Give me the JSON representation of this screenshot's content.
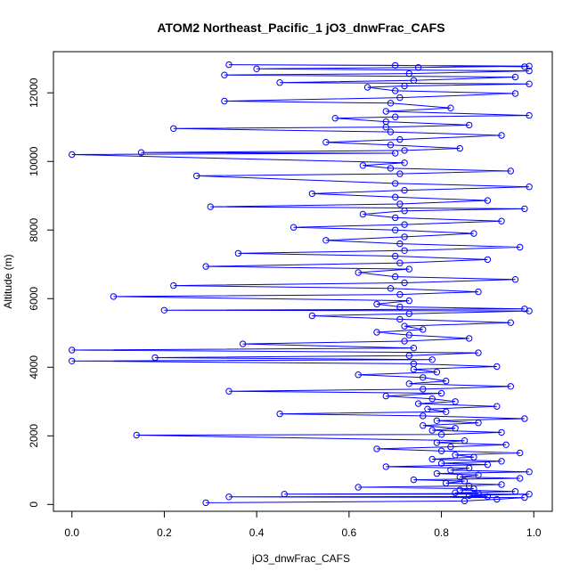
{
  "chart_data": {
    "type": "scatter",
    "title": "ATOM2 Northeast_Pacific_1 jO3_dnwFrac_CAFS",
    "xlabel": "jO3_dnwFrac_CAFS",
    "ylabel": "Altitude (m)",
    "xlim": [
      -0.04,
      1.04
    ],
    "ylim": [
      -200,
      13200
    ],
    "xticks": [
      0.0,
      0.2,
      0.4,
      0.6,
      0.8,
      1.0
    ],
    "xtick_labels": [
      "0.0",
      "0.2",
      "0.4",
      "0.6",
      "0.8",
      "1.0"
    ],
    "yticks": [
      0,
      2000,
      4000,
      6000,
      8000,
      10000,
      12000
    ],
    "ytick_labels": [
      "0",
      "2000",
      "4000",
      "6000",
      "8000",
      "10000",
      "12000"
    ],
    "marker": "open-circle",
    "line": "connected",
    "grid": false,
    "colors": {
      "series": "#0000ff",
      "axis": "#000000",
      "background": "#ffffff"
    },
    "series": [
      {
        "values_note_free": true,
        "points": [
          [
            0.29,
            50
          ],
          [
            0.85,
            100
          ],
          [
            0.92,
            150
          ],
          [
            0.98,
            200
          ],
          [
            0.34,
            220
          ],
          [
            0.9,
            230
          ],
          [
            0.86,
            260
          ],
          [
            0.99,
            300
          ],
          [
            0.46,
            300
          ],
          [
            0.88,
            320
          ],
          [
            0.83,
            340
          ],
          [
            0.96,
            380
          ],
          [
            0.84,
            420
          ],
          [
            0.87,
            460
          ],
          [
            0.62,
            500
          ],
          [
            0.86,
            540
          ],
          [
            0.93,
            580
          ],
          [
            0.81,
            620
          ],
          [
            0.85,
            680
          ],
          [
            0.74,
            720
          ],
          [
            0.97,
            760
          ],
          [
            0.84,
            800
          ],
          [
            0.88,
            860
          ],
          [
            0.79,
            900
          ],
          [
            0.99,
            950
          ],
          [
            0.82,
            1000
          ],
          [
            0.86,
            1060
          ],
          [
            0.68,
            1100
          ],
          [
            0.9,
            1160
          ],
          [
            0.8,
            1200
          ],
          [
            0.93,
            1260
          ],
          [
            0.78,
            1320
          ],
          [
            0.87,
            1380
          ],
          [
            0.83,
            1440
          ],
          [
            0.97,
            1500
          ],
          [
            0.8,
            1560
          ],
          [
            0.66,
            1620
          ],
          [
            0.82,
            1680
          ],
          [
            0.94,
            1740
          ],
          [
            0.79,
            1800
          ],
          [
            0.85,
            1860
          ],
          [
            0.14,
            2020
          ],
          [
            0.8,
            2040
          ],
          [
            0.93,
            2100
          ],
          [
            0.78,
            2160
          ],
          [
            0.83,
            2220
          ],
          [
            0.76,
            2300
          ],
          [
            0.88,
            2380
          ],
          [
            0.79,
            2440
          ],
          [
            0.98,
            2500
          ],
          [
            0.76,
            2580
          ],
          [
            0.45,
            2640
          ],
          [
            0.81,
            2700
          ],
          [
            0.77,
            2780
          ],
          [
            0.92,
            2860
          ],
          [
            0.75,
            2940
          ],
          [
            0.83,
            3000
          ],
          [
            0.78,
            3080
          ],
          [
            0.68,
            3160
          ],
          [
            0.8,
            3240
          ],
          [
            0.34,
            3300
          ],
          [
            0.76,
            3360
          ],
          [
            0.95,
            3440
          ],
          [
            0.73,
            3520
          ],
          [
            0.81,
            3600
          ],
          [
            0.76,
            3700
          ],
          [
            0.62,
            3780
          ],
          [
            0.79,
            3860
          ],
          [
            0.74,
            3940
          ],
          [
            0.92,
            4020
          ],
          [
            0.74,
            4100
          ],
          [
            0.0,
            4180
          ],
          [
            0.78,
            4220
          ],
          [
            0.18,
            4280
          ],
          [
            0.73,
            4340
          ],
          [
            0.88,
            4420
          ],
          [
            0.0,
            4500
          ],
          [
            0.74,
            4560
          ],
          [
            0.37,
            4680
          ],
          [
            0.72,
            4760
          ],
          [
            0.86,
            4840
          ],
          [
            0.73,
            4940
          ],
          [
            0.66,
            5020
          ],
          [
            0.76,
            5100
          ],
          [
            0.72,
            5200
          ],
          [
            0.95,
            5300
          ],
          [
            0.71,
            5400
          ],
          [
            0.52,
            5500
          ],
          [
            0.73,
            5560
          ],
          [
            0.99,
            5640
          ],
          [
            0.2,
            5660
          ],
          [
            0.98,
            5700
          ],
          [
            0.71,
            5760
          ],
          [
            0.66,
            5840
          ],
          [
            0.73,
            5940
          ],
          [
            0.09,
            6060
          ],
          [
            0.71,
            6120
          ],
          [
            0.88,
            6200
          ],
          [
            0.69,
            6300
          ],
          [
            0.22,
            6380
          ],
          [
            0.72,
            6460
          ],
          [
            0.96,
            6560
          ],
          [
            0.7,
            6640
          ],
          [
            0.62,
            6760
          ],
          [
            0.73,
            6860
          ],
          [
            0.29,
            6940
          ],
          [
            0.71,
            7040
          ],
          [
            0.9,
            7140
          ],
          [
            0.7,
            7240
          ],
          [
            0.36,
            7320
          ],
          [
            0.72,
            7400
          ],
          [
            0.97,
            7500
          ],
          [
            0.71,
            7600
          ],
          [
            0.55,
            7700
          ],
          [
            0.72,
            7800
          ],
          [
            0.87,
            7900
          ],
          [
            0.7,
            8000
          ],
          [
            0.48,
            8080
          ],
          [
            0.72,
            8160
          ],
          [
            0.93,
            8260
          ],
          [
            0.7,
            8360
          ],
          [
            0.63,
            8460
          ],
          [
            0.72,
            8560
          ],
          [
            0.98,
            8620
          ],
          [
            0.3,
            8680
          ],
          [
            0.71,
            8760
          ],
          [
            0.9,
            8860
          ],
          [
            0.7,
            8960
          ],
          [
            0.52,
            9060
          ],
          [
            0.72,
            9160
          ],
          [
            0.99,
            9260
          ],
          [
            0.7,
            9360
          ],
          [
            0.27,
            9580
          ],
          [
            0.71,
            9640
          ],
          [
            0.95,
            9720
          ],
          [
            0.69,
            9800
          ],
          [
            0.63,
            9880
          ],
          [
            0.72,
            9960
          ],
          [
            0.0,
            10200
          ],
          [
            0.7,
            10240
          ],
          [
            0.15,
            10260
          ],
          [
            0.72,
            10320
          ],
          [
            0.84,
            10380
          ],
          [
            0.69,
            10480
          ],
          [
            0.55,
            10560
          ],
          [
            0.71,
            10640
          ],
          [
            0.93,
            10760
          ],
          [
            0.69,
            10860
          ],
          [
            0.22,
            10960
          ],
          [
            0.68,
            11000
          ],
          [
            0.86,
            11060
          ],
          [
            0.68,
            11160
          ],
          [
            0.57,
            11260
          ],
          [
            0.7,
            11300
          ],
          [
            0.99,
            11340
          ],
          [
            0.68,
            11460
          ],
          [
            0.82,
            11560
          ],
          [
            0.69,
            11700
          ],
          [
            0.33,
            11760
          ],
          [
            0.71,
            11860
          ],
          [
            0.96,
            11980
          ],
          [
            0.7,
            12060
          ],
          [
            0.64,
            12160
          ],
          [
            0.72,
            12200
          ],
          [
            0.99,
            12260
          ],
          [
            0.45,
            12300
          ],
          [
            0.74,
            12360
          ],
          [
            0.96,
            12460
          ],
          [
            0.33,
            12520
          ],
          [
            0.73,
            12560
          ],
          [
            0.99,
            12640
          ],
          [
            0.4,
            12700
          ],
          [
            0.75,
            12740
          ],
          [
            0.99,
            12780
          ],
          [
            0.34,
            12820
          ],
          [
            0.7,
            12800
          ],
          [
            0.98,
            12760
          ]
        ]
      }
    ]
  }
}
